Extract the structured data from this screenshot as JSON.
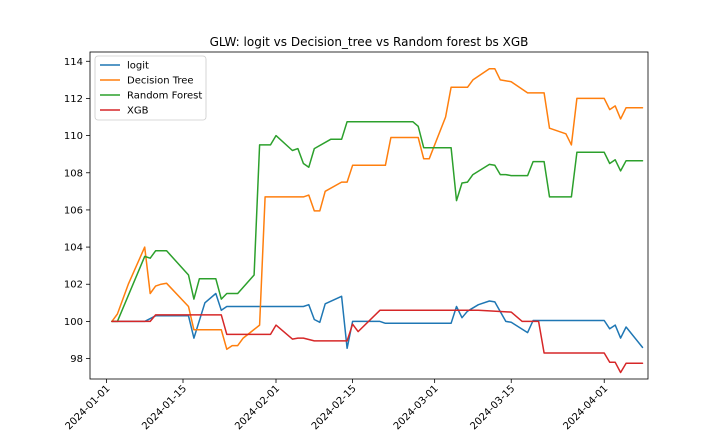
{
  "chart_data": {
    "type": "line",
    "title": "GLW: logit vs Decision_tree vs Random forest bs XGB",
    "xlabel": "",
    "ylabel": "",
    "ylim": [
      96.9,
      114.5
    ],
    "xlim": [
      "2023-12-29",
      "2024-04-09"
    ],
    "x_ticks": [
      "2024-01-01",
      "2024-01-15",
      "2024-02-01",
      "2024-02-15",
      "2024-03-01",
      "2024-03-15",
      "2024-04-01"
    ],
    "y_ticks": [
      98,
      100,
      102,
      104,
      106,
      108,
      110,
      112,
      114
    ],
    "grid": false,
    "legend_position": "upper-left",
    "series": [
      {
        "name": "logit",
        "color": "#1f77b4",
        "points": [
          [
            "2024-01-02",
            100.0
          ],
          [
            "2024-01-08",
            100.0
          ],
          [
            "2024-01-10",
            100.3
          ],
          [
            "2024-01-16",
            100.3
          ],
          [
            "2024-01-17",
            99.1
          ],
          [
            "2024-01-19",
            101.0
          ],
          [
            "2024-01-21",
            101.5
          ],
          [
            "2024-01-22",
            100.6
          ],
          [
            "2024-01-23",
            100.8
          ],
          [
            "2024-01-31",
            100.8
          ],
          [
            "2024-02-06",
            100.8
          ],
          [
            "2024-02-07",
            100.9
          ],
          [
            "2024-02-08",
            100.1
          ],
          [
            "2024-02-09",
            99.95
          ],
          [
            "2024-02-10",
            100.95
          ],
          [
            "2024-02-13",
            101.35
          ],
          [
            "2024-02-14",
            98.55
          ],
          [
            "2024-02-15",
            100.0
          ],
          [
            "2024-02-20",
            100.0
          ],
          [
            "2024-02-21",
            99.9
          ],
          [
            "2024-03-04",
            99.9
          ],
          [
            "2024-03-05",
            100.8
          ],
          [
            "2024-03-06",
            100.2
          ],
          [
            "2024-03-07",
            100.55
          ],
          [
            "2024-03-09",
            100.9
          ],
          [
            "2024-03-11",
            101.1
          ],
          [
            "2024-03-12",
            101.05
          ],
          [
            "2024-03-14",
            100.0
          ],
          [
            "2024-03-15",
            99.95
          ],
          [
            "2024-03-18",
            99.4
          ],
          [
            "2024-03-19",
            100.05
          ],
          [
            "2024-04-01",
            100.05
          ],
          [
            "2024-04-02",
            99.6
          ],
          [
            "2024-04-03",
            99.8
          ],
          [
            "2024-04-04",
            99.1
          ],
          [
            "2024-04-05",
            99.7
          ],
          [
            "2024-04-08",
            98.6
          ]
        ]
      },
      {
        "name": "Decision Tree",
        "color": "#ff7f0e",
        "points": [
          [
            "2024-01-02",
            100.0
          ],
          [
            "2024-01-03",
            100.4
          ],
          [
            "2024-01-05",
            102.0
          ],
          [
            "2024-01-08",
            104.0
          ],
          [
            "2024-01-09",
            101.5
          ],
          [
            "2024-01-10",
            101.9
          ],
          [
            "2024-01-11",
            102.0
          ],
          [
            "2024-01-12",
            102.05
          ],
          [
            "2024-01-16",
            100.8
          ],
          [
            "2024-01-17",
            99.55
          ],
          [
            "2024-01-22",
            99.55
          ],
          [
            "2024-01-23",
            98.5
          ],
          [
            "2024-01-24",
            98.7
          ],
          [
            "2024-01-25",
            98.7
          ],
          [
            "2024-01-26",
            99.1
          ],
          [
            "2024-01-29",
            99.8
          ],
          [
            "2024-01-30",
            106.7
          ],
          [
            "2024-02-06",
            106.7
          ],
          [
            "2024-02-07",
            106.8
          ],
          [
            "2024-02-08",
            105.95
          ],
          [
            "2024-02-09",
            105.95
          ],
          [
            "2024-02-10",
            107.0
          ],
          [
            "2024-02-13",
            107.5
          ],
          [
            "2024-02-14",
            107.5
          ],
          [
            "2024-02-15",
            108.4
          ],
          [
            "2024-02-21",
            108.4
          ],
          [
            "2024-02-22",
            109.9
          ],
          [
            "2024-02-27",
            109.9
          ],
          [
            "2024-02-28",
            108.75
          ],
          [
            "2024-02-29",
            108.75
          ],
          [
            "2024-03-03",
            111.0
          ],
          [
            "2024-03-04",
            112.6
          ],
          [
            "2024-03-07",
            112.6
          ],
          [
            "2024-03-08",
            113.0
          ],
          [
            "2024-03-11",
            113.6
          ],
          [
            "2024-03-12",
            113.6
          ],
          [
            "2024-03-13",
            113.0
          ],
          [
            "2024-03-15",
            112.9
          ],
          [
            "2024-03-18",
            112.3
          ],
          [
            "2024-03-21",
            112.3
          ],
          [
            "2024-03-22",
            110.4
          ],
          [
            "2024-03-25",
            110.1
          ],
          [
            "2024-03-26",
            109.5
          ],
          [
            "2024-03-27",
            112.0
          ],
          [
            "2024-04-01",
            112.0
          ],
          [
            "2024-04-02",
            111.4
          ],
          [
            "2024-04-03",
            111.6
          ],
          [
            "2024-04-04",
            110.9
          ],
          [
            "2024-04-05",
            111.5
          ],
          [
            "2024-04-08",
            111.5
          ]
        ]
      },
      {
        "name": "Random Forest",
        "color": "#2ca02c",
        "points": [
          [
            "2024-01-02",
            100.0
          ],
          [
            "2024-01-03",
            100.0
          ],
          [
            "2024-01-08",
            103.5
          ],
          [
            "2024-01-09",
            103.4
          ],
          [
            "2024-01-10",
            103.8
          ],
          [
            "2024-01-12",
            103.8
          ],
          [
            "2024-01-16",
            102.5
          ],
          [
            "2024-01-17",
            101.2
          ],
          [
            "2024-01-18",
            102.3
          ],
          [
            "2024-01-21",
            102.3
          ],
          [
            "2024-01-22",
            101.2
          ],
          [
            "2024-01-23",
            101.5
          ],
          [
            "2024-01-25",
            101.5
          ],
          [
            "2024-01-28",
            102.5
          ],
          [
            "2024-01-29",
            109.5
          ],
          [
            "2024-01-31",
            109.5
          ],
          [
            "2024-02-01",
            110.0
          ],
          [
            "2024-02-04",
            109.2
          ],
          [
            "2024-02-05",
            109.3
          ],
          [
            "2024-02-06",
            108.5
          ],
          [
            "2024-02-07",
            108.3
          ],
          [
            "2024-02-08",
            109.3
          ],
          [
            "2024-02-11",
            109.8
          ],
          [
            "2024-02-13",
            109.8
          ],
          [
            "2024-02-14",
            110.75
          ],
          [
            "2024-02-26",
            110.75
          ],
          [
            "2024-02-27",
            110.5
          ],
          [
            "2024-02-28",
            109.35
          ],
          [
            "2024-03-04",
            109.35
          ],
          [
            "2024-03-05",
            106.5
          ],
          [
            "2024-03-06",
            107.45
          ],
          [
            "2024-03-07",
            107.5
          ],
          [
            "2024-03-08",
            107.9
          ],
          [
            "2024-03-11",
            108.45
          ],
          [
            "2024-03-12",
            108.4
          ],
          [
            "2024-03-13",
            107.9
          ],
          [
            "2024-03-14",
            107.9
          ],
          [
            "2024-03-15",
            107.85
          ],
          [
            "2024-03-18",
            107.85
          ],
          [
            "2024-03-19",
            108.6
          ],
          [
            "2024-03-21",
            108.6
          ],
          [
            "2024-03-22",
            106.7
          ],
          [
            "2024-03-26",
            106.7
          ],
          [
            "2024-03-27",
            109.1
          ],
          [
            "2024-04-01",
            109.1
          ],
          [
            "2024-04-02",
            108.5
          ],
          [
            "2024-04-03",
            108.7
          ],
          [
            "2024-04-04",
            108.1
          ],
          [
            "2024-04-05",
            108.65
          ],
          [
            "2024-04-08",
            108.65
          ]
        ]
      },
      {
        "name": "XGB",
        "color": "#d62728",
        "points": [
          [
            "2024-01-02",
            100.0
          ],
          [
            "2024-01-09",
            100.0
          ],
          [
            "2024-01-10",
            100.35
          ],
          [
            "2024-01-22",
            100.35
          ],
          [
            "2024-01-23",
            99.3
          ],
          [
            "2024-01-31",
            99.3
          ],
          [
            "2024-02-01",
            99.8
          ],
          [
            "2024-02-04",
            99.05
          ],
          [
            "2024-02-05",
            99.1
          ],
          [
            "2024-02-06",
            99.1
          ],
          [
            "2024-02-08",
            98.95
          ],
          [
            "2024-02-14",
            98.95
          ],
          [
            "2024-02-15",
            99.85
          ],
          [
            "2024-02-16",
            99.45
          ],
          [
            "2024-02-20",
            100.6
          ],
          [
            "2024-03-09",
            100.6
          ],
          [
            "2024-03-15",
            100.5
          ],
          [
            "2024-03-17",
            100.0
          ],
          [
            "2024-03-20",
            100.0
          ],
          [
            "2024-03-21",
            98.3
          ],
          [
            "2024-04-01",
            98.3
          ],
          [
            "2024-04-02",
            97.8
          ],
          [
            "2024-04-03",
            97.8
          ],
          [
            "2024-04-04",
            97.25
          ],
          [
            "2024-04-05",
            97.75
          ],
          [
            "2024-04-08",
            97.75
          ]
        ]
      }
    ]
  }
}
